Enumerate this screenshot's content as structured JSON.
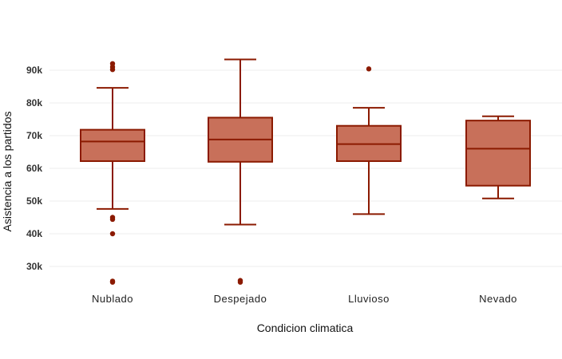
{
  "chart_data": {
    "type": "boxplot",
    "title": "",
    "xlabel": "Condicion climatica",
    "ylabel": "Asistencia a los partidos",
    "ylim": [
      24000,
      96000
    ],
    "yticks": [
      30000,
      40000,
      50000,
      60000,
      70000,
      80000,
      90000
    ],
    "ytick_labels": [
      "30k",
      "40k",
      "50k",
      "60k",
      "70k",
      "80k",
      "90k"
    ],
    "grid": true,
    "legend": "none",
    "colors": {
      "box_fill": "#c8705a",
      "box_stroke": "#8b1a00",
      "outlier": "#8b1a00"
    },
    "categories": [
      "Nublado",
      "Despejado",
      "Lluvioso",
      "Nevado"
    ],
    "boxes": [
      {
        "name": "Nublado",
        "whisker_low": 47600,
        "q1": 62200,
        "median": 68200,
        "q3": 71800,
        "whisker_high": 84600,
        "outliers": [
          92000,
          91000,
          90200,
          45000,
          44400,
          40000,
          25500,
          25200
        ]
      },
      {
        "name": "Despejado",
        "whisker_low": 42800,
        "q1": 62000,
        "median": 68800,
        "q3": 75500,
        "whisker_high": 93300,
        "outliers": [
          25700,
          25200
        ]
      },
      {
        "name": "Lluvioso",
        "whisker_low": 46000,
        "q1": 62200,
        "median": 67400,
        "q3": 73000,
        "whisker_high": 78500,
        "outliers": [
          90400
        ]
      },
      {
        "name": "Nevado",
        "whisker_low": 50800,
        "q1": 54700,
        "median": 66000,
        "q3": 74600,
        "whisker_high": 75900,
        "outliers": []
      }
    ]
  }
}
